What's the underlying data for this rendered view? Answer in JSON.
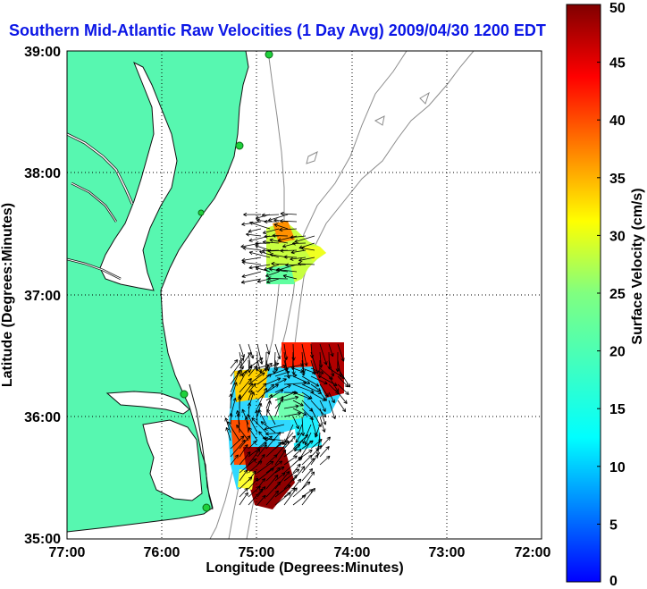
{
  "title": "Southern Mid-Atlantic Raw Velocities (1 Day Avg) 2009/04/30 1200 EDT",
  "xlabel": "Longitude (Degrees:Minutes)",
  "ylabel": "Latitude (Degrees:Minutes)",
  "x_ticks": [
    "77:00",
    "76:00",
    "75:00",
    "74:00",
    "73:00",
    "72:00"
  ],
  "y_ticks": [
    "39:00",
    "38:00",
    "37:00",
    "36:00",
    "35:00"
  ],
  "colorbar": {
    "label": "Surface Velocity (cm/s)",
    "ticks": [
      "0",
      "5",
      "10",
      "15",
      "20",
      "25",
      "30",
      "35",
      "40",
      "45",
      "50"
    ],
    "range": [
      0,
      50
    ]
  },
  "map_extent": {
    "lon_range": [
      -77,
      -72
    ],
    "lat_range": [
      35,
      39
    ]
  },
  "colors": {
    "land": "#57f7b0",
    "coast": "#111111",
    "isobath": "#8c8c8c",
    "grid": "#000000",
    "station": "#1fd13c",
    "title": "#0b16e6"
  }
}
